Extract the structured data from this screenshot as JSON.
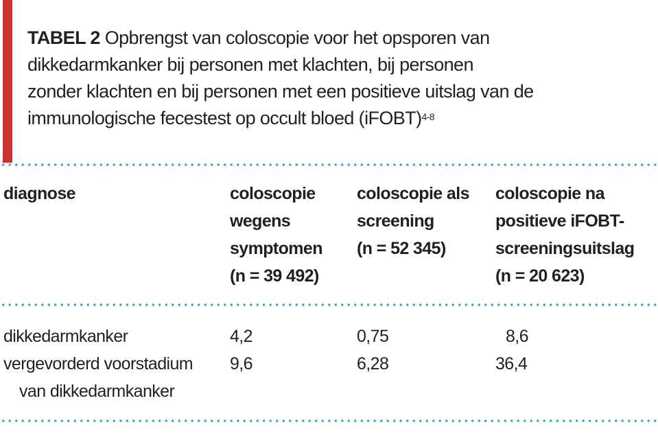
{
  "table": {
    "label": "TABEL 2",
    "caption": "Opbrengst van coloscopie voor het opsporen van dikkedarmkanker bij personen met klachten, bij personen zonder klachten en bij personen met een positieve uitslag van de immunologische fecestest op occult bloed (iFOBT)",
    "caption_lines": [
      "Opbrengst van coloscopie voor het opsporen van",
      "dikkedarmkanker bij personen met klachten, bij personen",
      "zonder klachten en bij personen met een positieve uitslag van de",
      "immunologische fecestest op occult bloed (iFOBT)"
    ],
    "reference": "4-8",
    "headers": [
      [
        "diagnose"
      ],
      [
        "coloscopie",
        "wegens",
        "symptomen",
        "(n = 39 492)"
      ],
      [
        "coloscopie als",
        "screening",
        "(n = 52 345)"
      ],
      [
        "coloscopie na",
        "positieve iFOBT-",
        "screeningsuitslag",
        "(n = 20 623)"
      ]
    ],
    "rows": [
      {
        "diagnose": [
          "dikkedarmkanker"
        ],
        "values": [
          "4,2",
          "0,75",
          "8,6"
        ]
      },
      {
        "diagnose": [
          "vergevorderd voorstadium",
          "van dikkedarmkanker"
        ],
        "values": [
          "9,6",
          "6,28",
          "36,4"
        ]
      }
    ]
  }
}
